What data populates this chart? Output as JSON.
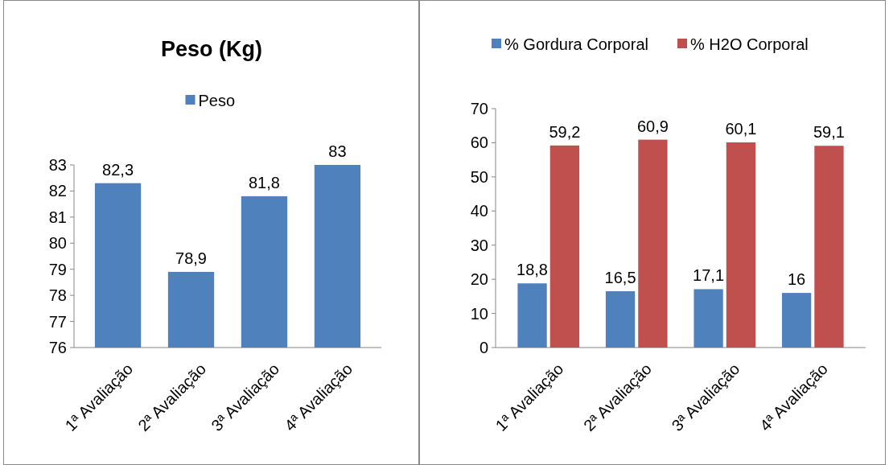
{
  "chart_data": [
    {
      "type": "bar",
      "title": "Peso (Kg)",
      "categories": [
        "1ª Avaliação",
        "2ª Avaliação",
        "3ª Avaliação",
        "4ª Avaliação"
      ],
      "series": [
        {
          "name": "Peso",
          "color": "#4f81bd",
          "values": [
            82.3,
            78.9,
            81.8,
            83
          ],
          "value_labels": [
            "82,3",
            "78,9",
            "81,8",
            "83"
          ]
        }
      ],
      "ylim": [
        76,
        83
      ],
      "yticks": [
        76,
        77,
        78,
        79,
        80,
        81,
        82,
        83
      ],
      "legend": "top",
      "grid": false
    },
    {
      "type": "bar",
      "categories": [
        "1ª Avaliação",
        "2ª Avaliação",
        "3ª Avaliação",
        "4ª Avaliação"
      ],
      "series": [
        {
          "name": "% Gordura Corporal",
          "color": "#4f81bd",
          "values": [
            18.8,
            16.5,
            17.1,
            16
          ],
          "value_labels": [
            "18,8",
            "16,5",
            "17,1",
            "16"
          ]
        },
        {
          "name": "% H2O Corporal",
          "color": "#c0504d",
          "values": [
            59.2,
            60.9,
            60.1,
            59.1
          ],
          "value_labels": [
            "59,2",
            "60,9",
            "60,1",
            "59,1"
          ]
        }
      ],
      "ylim": [
        0,
        70
      ],
      "yticks": [
        0,
        10,
        20,
        30,
        40,
        50,
        60,
        70
      ],
      "legend": "top",
      "grid": false
    }
  ]
}
